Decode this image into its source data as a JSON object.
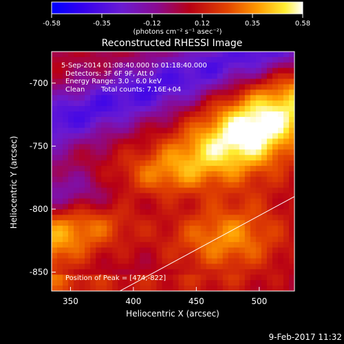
{
  "chart_data": {
    "type": "heatmap",
    "title": "Reconstructed RHESSI Image",
    "xlabel": "Heliocentric X (arcsec)",
    "ylabel": "Heliocentric Y (arcsec)",
    "x_range": [
      335,
      528
    ],
    "y_range": [
      -865,
      -675
    ],
    "x_ticks": [
      350,
      400,
      450,
      500
    ],
    "y_ticks": [
      -700,
      -750,
      -800,
      -850
    ],
    "colorbar": {
      "range": [
        -0.58,
        0.58
      ],
      "ticks": [
        "-0.58",
        "-0.35",
        "-0.12",
        "0.12",
        "0.35",
        "0.58"
      ],
      "unit_label": "(photons cm⁻² s⁻¹ asec⁻²)"
    },
    "annotations": {
      "time_range": "5-Sep-2014 01:08:40.000 to 01:18:40.000",
      "detectors": "Detectors: 3F 6F 9F, Att 0",
      "energy": "Energy Range: 3.0 - 6.0 keV",
      "method": "Clean",
      "total_counts": "Total counts: 7.16E+04",
      "peak": "Position of Peak = [474,-822]"
    },
    "peak_position": [
      474,
      -822
    ],
    "limb_line": [
      [
        380,
        -870
      ],
      [
        528,
        -790
      ]
    ],
    "footer_date": "9-Feb-2017 11:32"
  }
}
